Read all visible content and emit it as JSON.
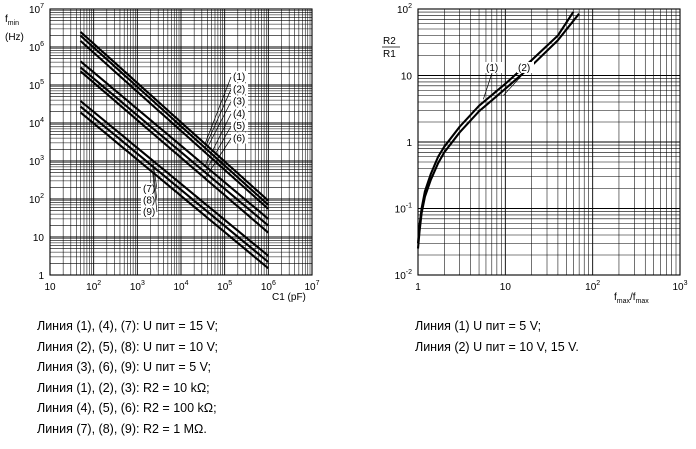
{
  "chart_data": [
    {
      "type": "line",
      "scale": "log-log",
      "grid": true,
      "ylabel_top": "f",
      "ylabel_sub": "min",
      "ylabel_unit": "(Hz)",
      "xlabel": "C1 (pF)",
      "xlim": [
        10,
        10000000
      ],
      "ylim": [
        1,
        10000000
      ],
      "x_ticks": [
        "10",
        "10^2",
        "10^3",
        "10^4",
        "10^5",
        "10^6",
        "10^7"
      ],
      "y_ticks": [
        "1",
        "10",
        "10^2",
        "10^3",
        "10^4",
        "10^5",
        "10^6",
        "10^7"
      ],
      "series": [
        {
          "name": "(1)",
          "x": [
            50,
            1000000
          ],
          "y": [
            2500000,
            90
          ]
        },
        {
          "name": "(2)",
          "x": [
            50,
            1000000
          ],
          "y": [
            2000000,
            70
          ]
        },
        {
          "name": "(3)",
          "x": [
            50,
            1000000
          ],
          "y": [
            1450000,
            55
          ]
        },
        {
          "name": "(4)",
          "x": [
            50,
            1000000
          ],
          "y": [
            420000,
            30
          ]
        },
        {
          "name": "(5)",
          "x": [
            50,
            1000000
          ],
          "y": [
            290000,
            20
          ]
        },
        {
          "name": "(6)",
          "x": [
            50,
            1000000
          ],
          "y": [
            230000,
            13
          ]
        },
        {
          "name": "(7)",
          "x": [
            50,
            1000000
          ],
          "y": [
            38000,
            3.2
          ]
        },
        {
          "name": "(8)",
          "x": [
            50,
            1000000
          ],
          "y": [
            27000,
            2.2
          ]
        },
        {
          "name": "(9)",
          "x": [
            50,
            1000000
          ],
          "y": [
            19000,
            1.5
          ]
        }
      ],
      "legend_right": [
        "(1)",
        "(2)",
        "(3)",
        "(4)",
        "(5)",
        "(6)"
      ],
      "legend_left": [
        "(7)",
        "(8)",
        "(9)"
      ]
    },
    {
      "type": "line",
      "scale": "log-log",
      "grid": true,
      "ylabel_num": "R2",
      "ylabel_den": "R1",
      "xlabel_main": "f",
      "xlabel_sub1": "max",
      "xlabel_mid": "/f",
      "xlabel_sub2": "max",
      "xlim": [
        1,
        1000
      ],
      "ylim": [
        0.01,
        100
      ],
      "x_ticks": [
        "1",
        "10",
        "10^2",
        "10^3"
      ],
      "y_ticks": [
        "10^-2",
        "10^-1",
        "1",
        "10",
        "10^2"
      ],
      "series": [
        {
          "name": "(1)",
          "x": [
            1.0,
            1.04,
            1.1,
            1.2,
            1.4,
            1.7,
            2,
            3,
            5,
            10,
            20,
            40,
            60
          ],
          "y": [
            0.03,
            0.055,
            0.1,
            0.18,
            0.33,
            0.6,
            0.85,
            1.7,
            3.5,
            7.5,
            17,
            40,
            90
          ]
        },
        {
          "name": "(2)",
          "x": [
            1.0,
            1.04,
            1.1,
            1.2,
            1.4,
            1.7,
            2,
            3,
            5,
            10,
            20,
            40,
            70
          ],
          "y": [
            0.025,
            0.045,
            0.085,
            0.15,
            0.27,
            0.48,
            0.7,
            1.4,
            2.9,
            6.3,
            14,
            34,
            85
          ]
        }
      ]
    }
  ],
  "captions_left": [
    {
      "text": "Линия (1), (4), (7): U пит = 15 V;"
    },
    {
      "text": "Линия (2), (5), (8): U пит = 10 V;"
    },
    {
      "text": "Линия (3), (6), (9): U пит = 5 V;"
    },
    {
      "text": "Линия (1), (2), (3): R2 = 10 kΩ;"
    },
    {
      "text": "Линия (4), (5), (6): R2 = 100 kΩ;"
    },
    {
      "text": "Линия (7), (8), (9): R2 = 1 MΩ."
    }
  ],
  "captions_right": [
    {
      "text": "Линия (1) U пит = 5 V;"
    },
    {
      "text": "Линия (2) U пит = 10 V, 15 V."
    }
  ]
}
